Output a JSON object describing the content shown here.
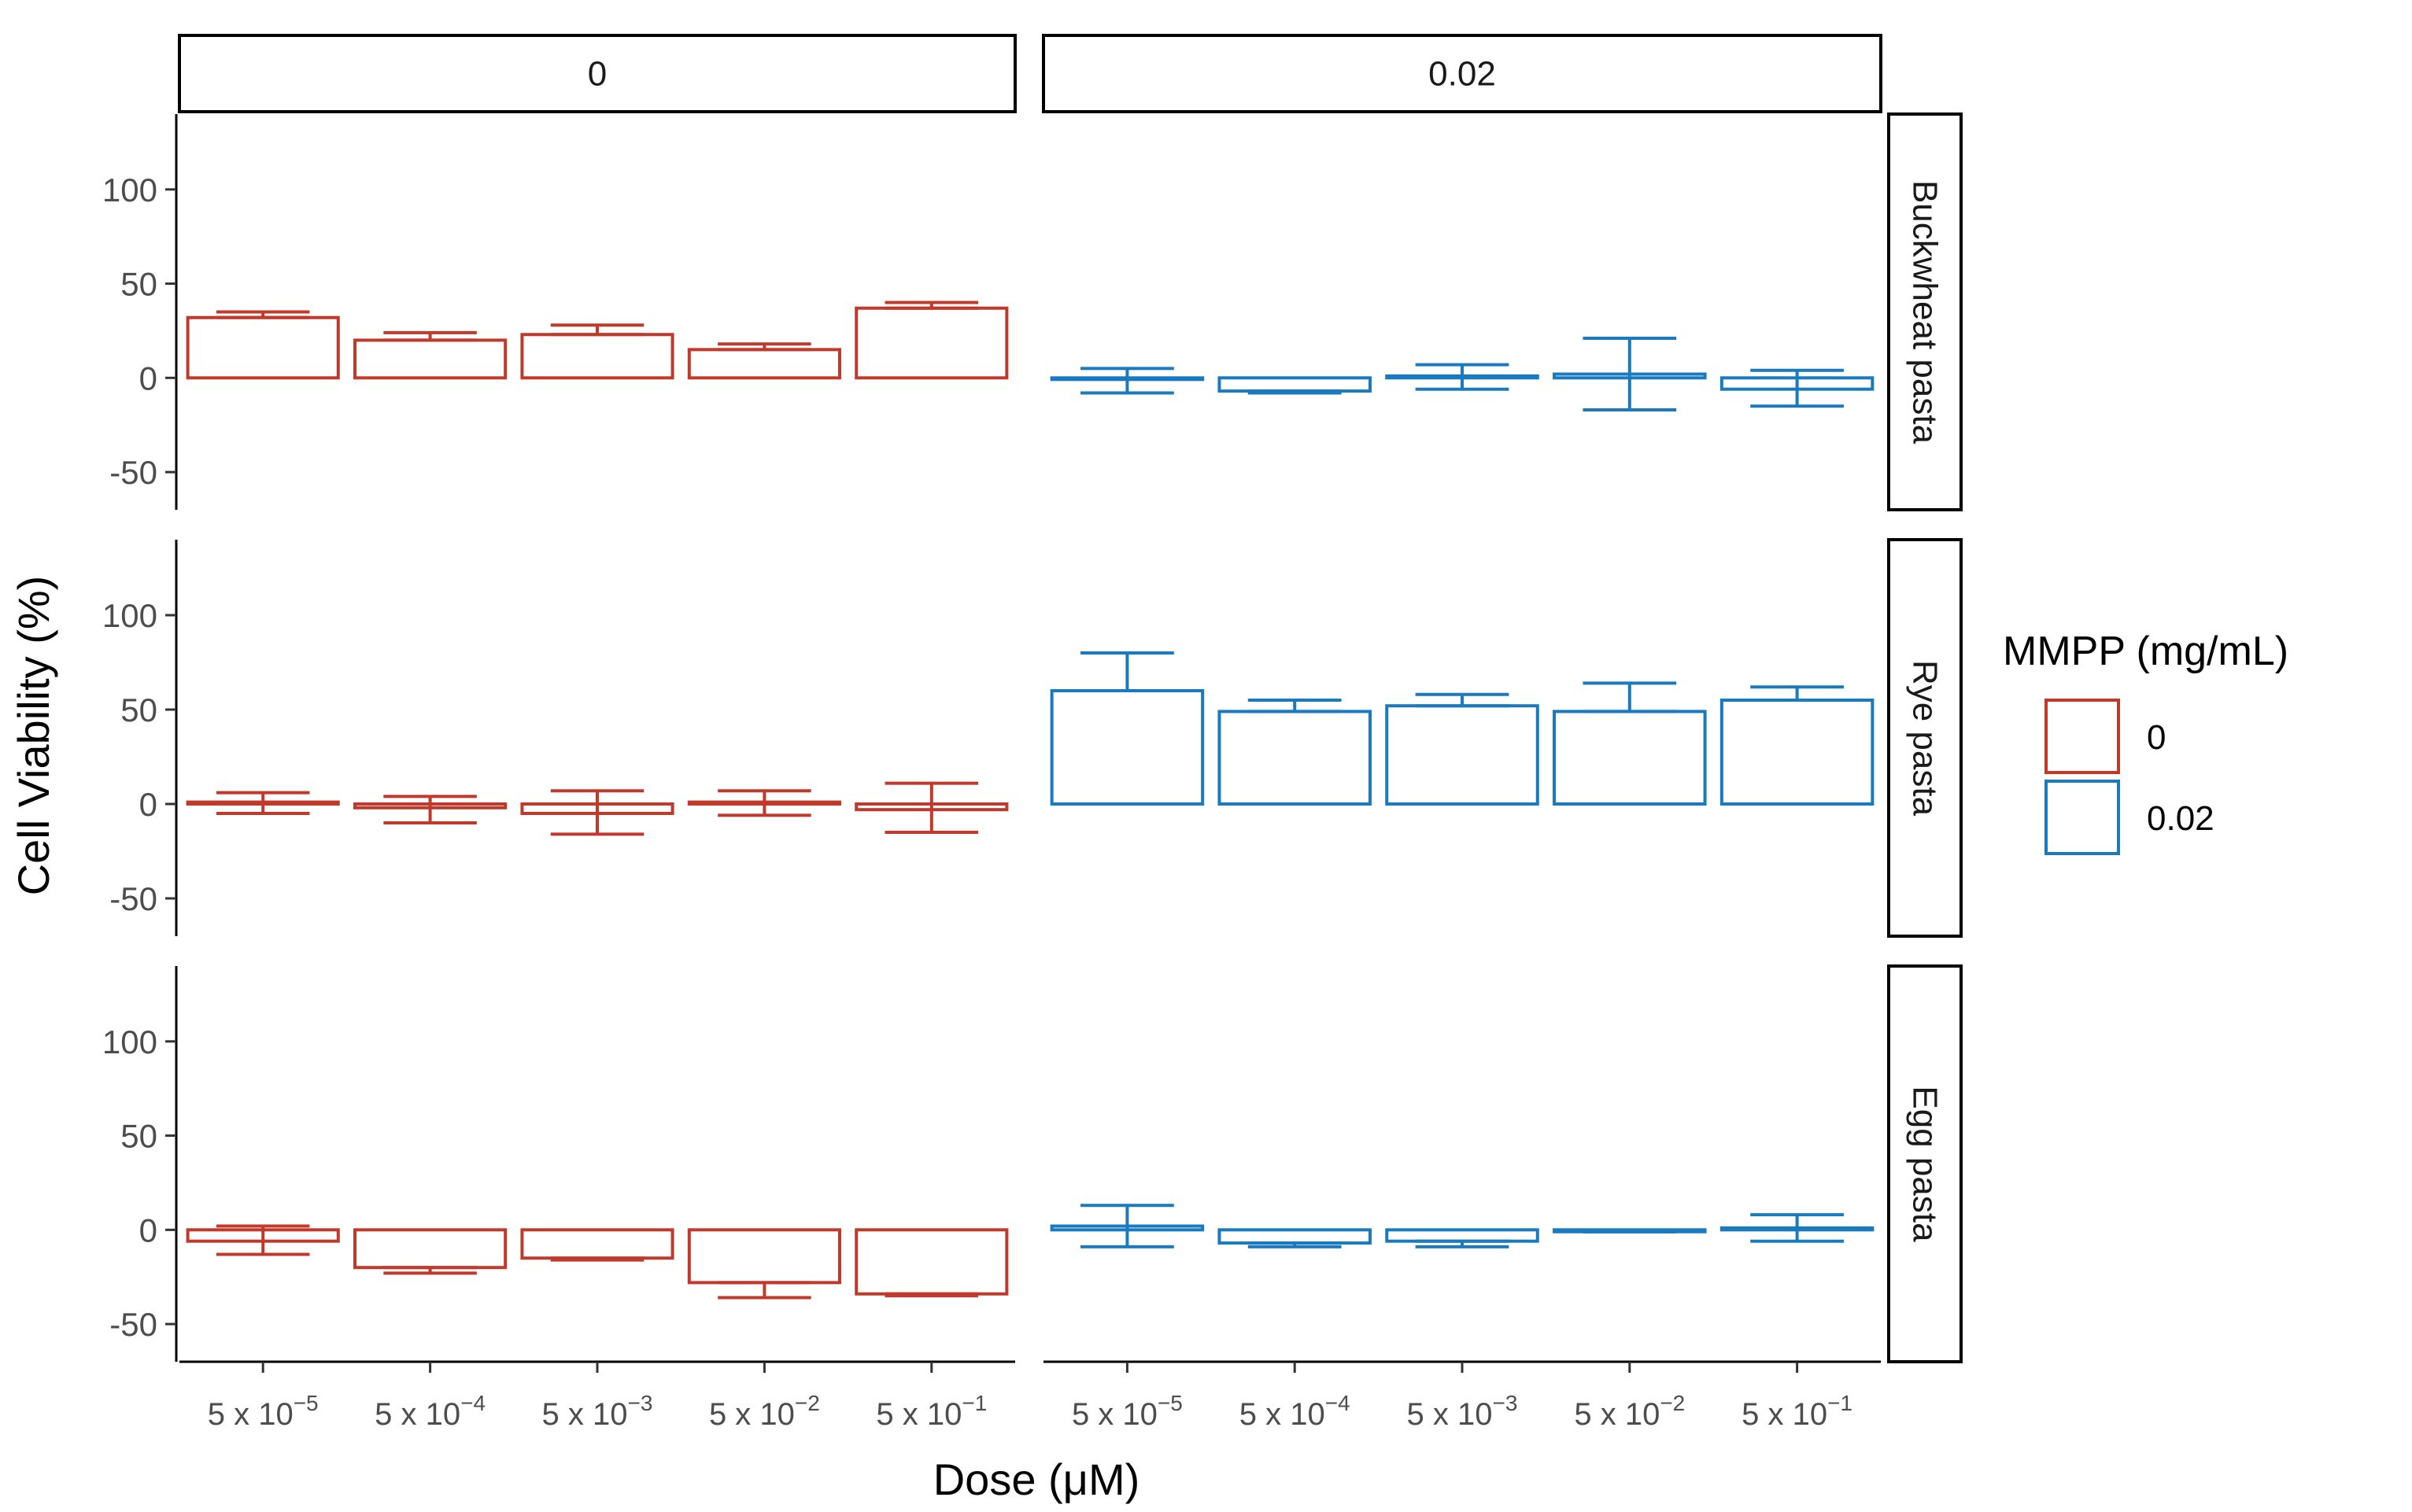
{
  "chart_data": {
    "type": "bar",
    "facet_layout": "rows by pasta type, columns by MMPP concentration",
    "title": "",
    "xlabel_prefix": "Dose (",
    "xlabel_unit": "μM",
    "xlabel_suffix": ")",
    "ylabel": "Cell Viability (%)",
    "ylim": [
      -70,
      140
    ],
    "y_ticks": [
      -50,
      0,
      50,
      100
    ],
    "y_tick_labels": [
      "-50",
      "0",
      "50",
      "100"
    ],
    "categories": [
      {
        "base": "5 x 10",
        "exp": "−5"
      },
      {
        "base": "5 x 10",
        "exp": "−4"
      },
      {
        "base": "5 x 10",
        "exp": "−3"
      },
      {
        "base": "5 x 10",
        "exp": "−2"
      },
      {
        "base": "5 x 10",
        "exp": "−1"
      }
    ],
    "column_facets": [
      "0",
      "0.02"
    ],
    "row_facets": [
      "Buckwheat pasta",
      "Rye pasta",
      "Egg pasta"
    ],
    "legend": {
      "title": "MMPP (mg/mL)",
      "position": "right",
      "entries": [
        {
          "label": "0",
          "color": "#c0392b"
        },
        {
          "label": "0.02",
          "color": "#1a7abf"
        }
      ]
    },
    "panels": [
      {
        "row": "Buckwheat pasta",
        "col": "0",
        "values": [
          32,
          20,
          23,
          15,
          37
        ],
        "err_low": [
          32,
          20,
          23,
          15,
          37
        ],
        "err_high": [
          35,
          24,
          28,
          18,
          40
        ]
      },
      {
        "row": "Buckwheat pasta",
        "col": "0.02",
        "values": [
          0,
          -7,
          1,
          2,
          -6
        ],
        "err_low": [
          -8,
          -8,
          -6,
          -17,
          -15
        ],
        "err_high": [
          5,
          -7,
          7,
          21,
          4
        ]
      },
      {
        "row": "Rye pasta",
        "col": "0",
        "values": [
          1,
          -2,
          -5,
          1,
          -3
        ],
        "err_low": [
          -5,
          -10,
          -16,
          -6,
          -15
        ],
        "err_high": [
          6,
          4,
          7,
          7,
          11
        ]
      },
      {
        "row": "Rye pasta",
        "col": "0.02",
        "values": [
          60,
          49,
          52,
          49,
          55
        ],
        "err_low": [
          60,
          49,
          52,
          49,
          55
        ],
        "err_high": [
          80,
          55,
          58,
          64,
          62
        ]
      },
      {
        "row": "Egg pasta",
        "col": "0",
        "values": [
          -6,
          -20,
          -15,
          -28,
          -34
        ],
        "err_low": [
          -13,
          -23,
          -16,
          -36,
          -35
        ],
        "err_high": [
          2,
          -20,
          -15,
          -28,
          -34
        ]
      },
      {
        "row": "Egg pasta",
        "col": "0.02",
        "values": [
          2,
          -7,
          -6,
          -1,
          1
        ],
        "err_low": [
          -9,
          -9,
          -9,
          -1,
          -6
        ],
        "err_high": [
          13,
          -7,
          -6,
          -1,
          8
        ]
      }
    ]
  }
}
